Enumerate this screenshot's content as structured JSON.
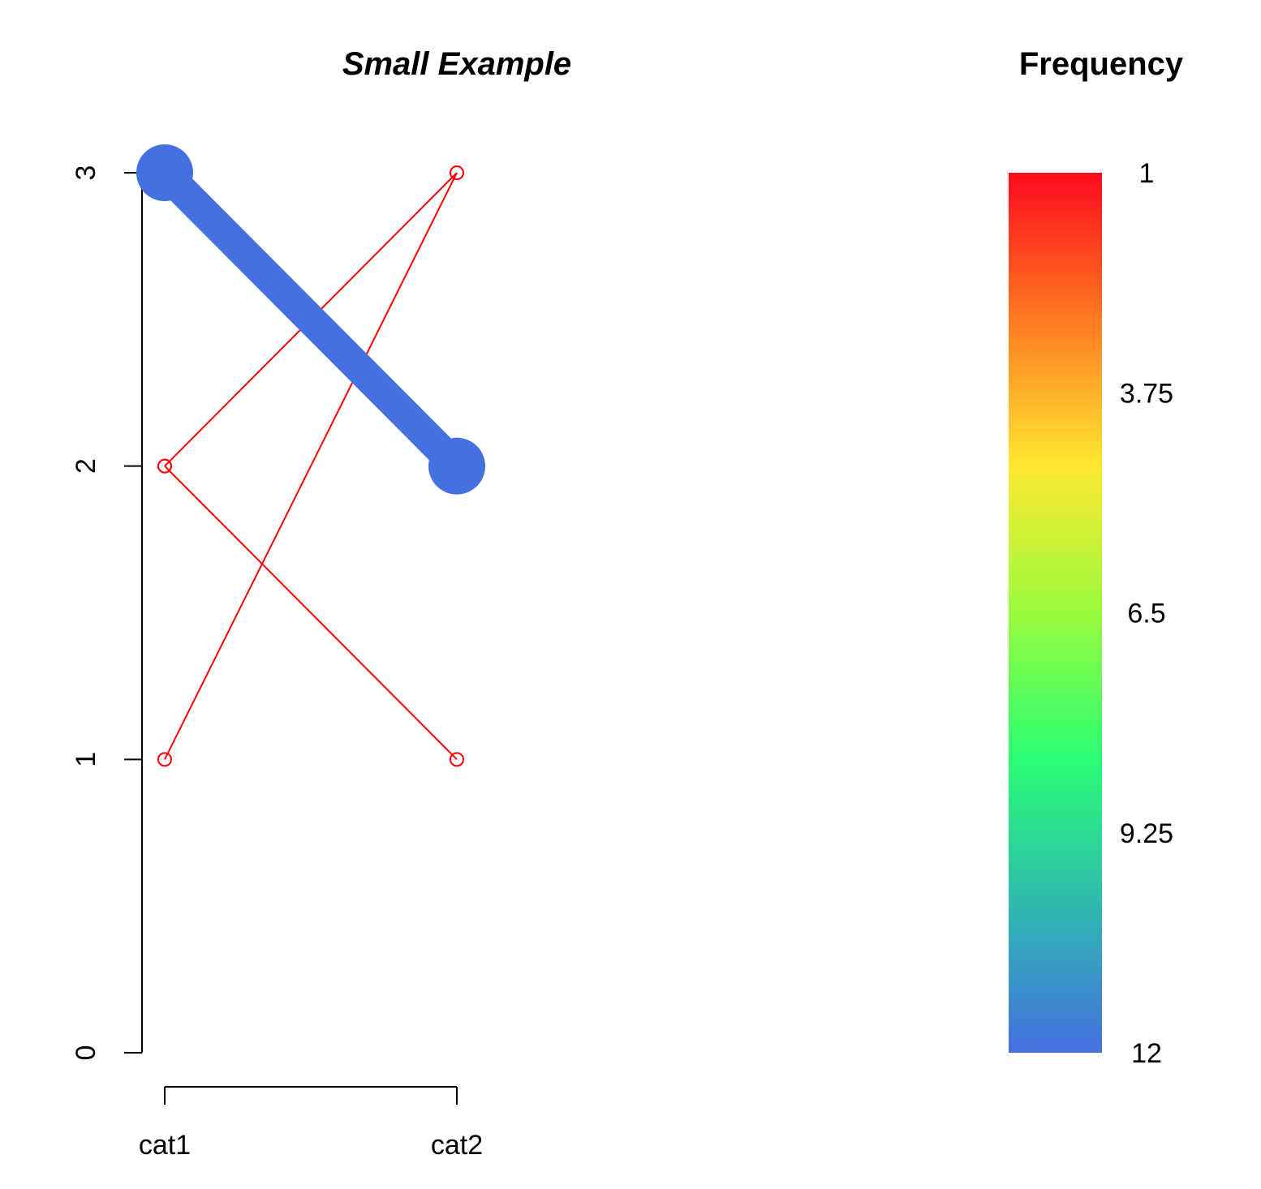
{
  "chart_data": {
    "type": "line",
    "title": "Small Example",
    "categories": [
      "cat1",
      "cat2"
    ],
    "ylim": [
      0,
      3
    ],
    "y_ticks": [
      "0",
      "1",
      "2",
      "3"
    ],
    "series": [
      {
        "values": [
          3,
          2
        ],
        "frequency": 12,
        "color": "#4570E0"
      },
      {
        "values": [
          2,
          3
        ],
        "frequency": 1,
        "color": "#FF0000"
      },
      {
        "values": [
          1,
          3
        ],
        "frequency": 1,
        "color": "#FF0000"
      },
      {
        "values": [
          2,
          1
        ],
        "frequency": 1,
        "color": "#FF0000"
      }
    ],
    "legend": {
      "title": "Frequency",
      "labels": [
        "1",
        "3.75",
        "6.5",
        "9.25",
        "12"
      ],
      "range": [
        1,
        12
      ],
      "gradient": [
        "#FF0A1E",
        "#FF7A22",
        "#FDE830",
        "#9AFC3E",
        "#2AFE74",
        "#2FB8B0",
        "#4570E0"
      ]
    }
  }
}
